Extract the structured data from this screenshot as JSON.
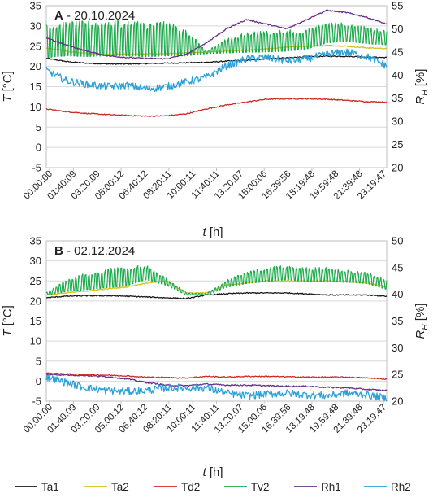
{
  "chart_data": [
    {
      "type": "line",
      "panel_letter": "A",
      "title": " - 20.10.2024",
      "xlabel_main": "t",
      "xlabel_unit": " [h]",
      "ylabel_main": "T",
      "ylabel_unit": " [°C]",
      "y2label_main": "R",
      "y2label_sub": "H",
      "y2label_unit": " [%]",
      "ylim": [
        -5,
        35
      ],
      "y_ticks": [
        "-5",
        "0",
        "5",
        "10",
        "15",
        "20",
        "25",
        "30",
        "35"
      ],
      "y2lim": [
        20,
        55
      ],
      "y2_ticks": [
        "20",
        "25",
        "30",
        "35",
        "40",
        "45",
        "50",
        "55"
      ],
      "x_ticks": [
        "00:00:00",
        "01:40:09",
        "03:20:09",
        "05:00:12",
        "06:40:12",
        "08:20:11",
        "10:00:11",
        "11:40:11",
        "13:20:07",
        "15:00:06",
        "16:39:56",
        "18:19:48",
        "19:59:48",
        "21:39:48",
        "23:19:47"
      ],
      "series": [
        {
          "name": "Ta1",
          "axis": "left",
          "color": "#1a1a1a",
          "values": [
            22.0,
            21.2,
            20.8,
            20.6,
            20.6,
            20.7,
            20.8,
            20.9,
            21.0,
            21.3,
            21.5,
            21.9,
            22.1,
            22.4,
            22.5,
            22.5,
            22.3,
            22.2
          ]
        },
        {
          "name": "Ta2",
          "axis": "left",
          "color": "#d6c21b",
          "values": [
            24.5,
            23.8,
            23.2,
            23.0,
            23.0,
            23.1,
            23.2,
            23.3,
            23.5,
            23.8,
            24.0,
            24.3,
            24.8,
            25.0,
            25.2,
            25.0,
            24.6,
            24.4
          ]
        },
        {
          "name": "Td2",
          "axis": "left",
          "color": "#cc2a22",
          "values": [
            9.5,
            8.8,
            8.4,
            8.1,
            7.9,
            7.7,
            7.8,
            8.3,
            9.5,
            10.5,
            11.2,
            11.9,
            12.0,
            12.0,
            11.9,
            11.6,
            11.3,
            11.2
          ]
        },
        {
          "name": "Tv2",
          "axis": "left",
          "color": "#1aaa4a",
          "values": [
            22.5,
            23.0,
            22.8,
            23.0,
            23.0,
            22.8,
            23.0,
            22.9,
            23.2,
            23.5,
            23.7,
            23.8,
            24.0,
            24.5,
            26.0,
            26.5,
            25.8,
            25.5
          ],
          "oscillation": {
            "amplitude": [
              7.0,
              7.2,
              7.3,
              7.5,
              7.5,
              7.3,
              7.2,
              5.5,
              0.5,
              3.0,
              4.2,
              4.5,
              4.5,
              4.0,
              4.2,
              3.8,
              3.5,
              3.0
            ],
            "period": 4
          }
        },
        {
          "name": "Rh1",
          "axis": "right",
          "color": "#6a2f86",
          "values": [
            48.0,
            46.5,
            45.2,
            44.2,
            43.8,
            43.6,
            43.5,
            44.5,
            47.0,
            50.0,
            52.0,
            51.0,
            50.0,
            52.0,
            54.0,
            53.5,
            52.5,
            51.0
          ]
        },
        {
          "name": "Rh2",
          "axis": "right",
          "color": "#2aa1d9",
          "values": [
            41.0,
            38.8,
            38.0,
            37.5,
            37.8,
            37.0,
            37.5,
            38.5,
            39.5,
            42.0,
            43.5,
            43.8,
            43.0,
            43.5,
            44.5,
            45.0,
            44.0,
            42.0
          ],
          "noise": 0.8
        }
      ]
    },
    {
      "type": "line",
      "panel_letter": "B",
      "title": " - 02.12.2024",
      "xlabel_main": "t",
      "xlabel_unit": " [h]",
      "ylabel_main": "T",
      "ylabel_unit": " [°C]",
      "y2label_main": "R",
      "y2label_sub": "H",
      "y2label_unit": " [%]",
      "ylim": [
        -5,
        35
      ],
      "y_ticks": [
        "-5",
        "0",
        "5",
        "10",
        "15",
        "20",
        "25",
        "30",
        "35"
      ],
      "y2lim": [
        20,
        50
      ],
      "y2_ticks": [
        "20",
        "25",
        "30",
        "35",
        "40",
        "45",
        "50"
      ],
      "x_ticks": [
        "00:00:00",
        "01:40:09",
        "03:20:09",
        "05:00:12",
        "06:40:12",
        "08:20:11",
        "10:00:11",
        "11:40:11",
        "13:20:07",
        "15:00:06",
        "16:39:56",
        "18:19:48",
        "19:59:48",
        "21:39:48",
        "23:19:47"
      ],
      "series": [
        {
          "name": "Ta1",
          "axis": "left",
          "color": "#1a1a1a",
          "values": [
            20.8,
            21.2,
            21.3,
            21.3,
            21.2,
            21.0,
            20.8,
            20.6,
            21.5,
            21.8,
            22.0,
            22.0,
            22.0,
            21.8,
            21.5,
            21.5,
            21.5,
            21.2
          ]
        },
        {
          "name": "Ta2",
          "axis": "left",
          "color": "#d6c21b",
          "values": [
            21.5,
            22.0,
            22.5,
            23.0,
            23.5,
            24.5,
            25.0,
            22.0,
            22.0,
            24.0,
            24.5,
            25.0,
            25.0,
            25.0,
            25.0,
            24.8,
            24.5,
            23.5
          ]
        },
        {
          "name": "Tv2",
          "axis": "left",
          "color": "#1aaa4a",
          "values": [
            21.5,
            22.5,
            23.0,
            23.5,
            24.0,
            25.5,
            24.0,
            21.5,
            21.5,
            23.5,
            24.5,
            25.0,
            25.5,
            25.0,
            25.0,
            24.8,
            24.5,
            23.0
          ],
          "oscillation": {
            "amplitude": [
              0.5,
              2.5,
              3.5,
              4.0,
              4.0,
              3.0,
              1.5,
              0.5,
              0.3,
              1.5,
              2.5,
              3.0,
              3.0,
              3.0,
              3.0,
              2.5,
              2.5,
              2.0
            ],
            "period": 4
          }
        },
        {
          "name": "Rh1",
          "axis": "right",
          "color": "#6a2f86",
          "values": [
            25.0,
            24.9,
            24.8,
            24.6,
            24.2,
            23.5,
            23.0,
            22.9,
            23.2,
            23.0,
            23.0,
            22.9,
            22.8,
            22.8,
            22.6,
            22.5,
            22.2,
            22.0
          ]
        },
        {
          "name": "Td2",
          "axis": "left",
          "color": "#cc2a22",
          "values": [
            2.0,
            1.8,
            1.6,
            1.5,
            1.3,
            1.0,
            0.9,
            0.8,
            1.2,
            1.0,
            1.2,
            1.2,
            1.1,
            1.0,
            1.0,
            1.0,
            0.8,
            0.5
          ]
        },
        {
          "name": "Rh2",
          "axis": "right",
          "color": "#2aa1d9",
          "values": [
            24.5,
            23.5,
            22.5,
            22.0,
            21.8,
            22.0,
            22.5,
            22.5,
            22.5,
            21.5,
            21.0,
            21.3,
            21.5,
            21.2,
            21.0,
            21.5,
            21.2,
            20.5
          ],
          "noise": 0.7
        }
      ]
    }
  ],
  "legend": [
    {
      "name": "Ta1",
      "color": "#1a1a1a"
    },
    {
      "name": "Ta2",
      "color": "#d6c21b"
    },
    {
      "name": "Td2",
      "color": "#cc2a22"
    },
    {
      "name": "Tv2",
      "color": "#1aaa4a"
    },
    {
      "name": "Rh1",
      "color": "#6a2f86"
    },
    {
      "name": "Rh2",
      "color": "#2aa1d9"
    }
  ]
}
